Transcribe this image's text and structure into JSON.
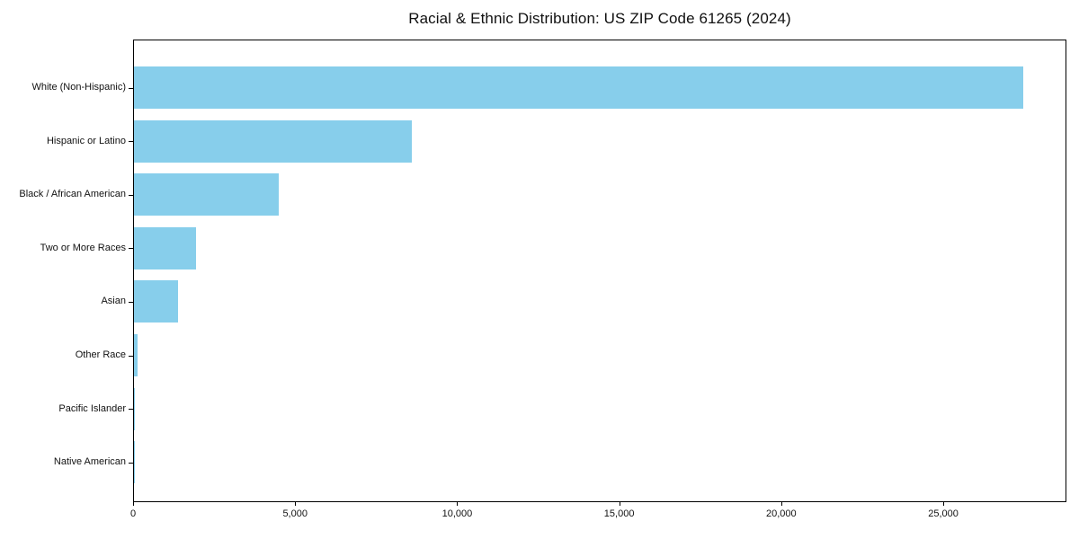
{
  "chart_data": {
    "type": "bar",
    "orientation": "horizontal",
    "title": "Racial & Ethnic Distribution: US ZIP Code 61265 (2024)",
    "categories": [
      "White (Non-Hispanic)",
      "Hispanic or Latino",
      "Black / African American",
      "Two or More Races",
      "Asian",
      "Other Race",
      "Pacific Islander",
      "Native American"
    ],
    "values": [
      27440,
      8570,
      4470,
      1910,
      1360,
      100,
      25,
      15
    ],
    "xlabel": "",
    "ylabel": "",
    "xlim": [
      0,
      28800
    ],
    "xticks": [
      0,
      5000,
      10000,
      15000,
      20000,
      25000
    ],
    "xtick_labels": [
      "0",
      "5,000",
      "10,000",
      "15,000",
      "20,000",
      "25,000"
    ],
    "bar_color": "#87CEEB",
    "axis_color": "#000000",
    "text_color": "#111111",
    "background_color": "#ffffff",
    "grid": false,
    "legend": "none"
  }
}
